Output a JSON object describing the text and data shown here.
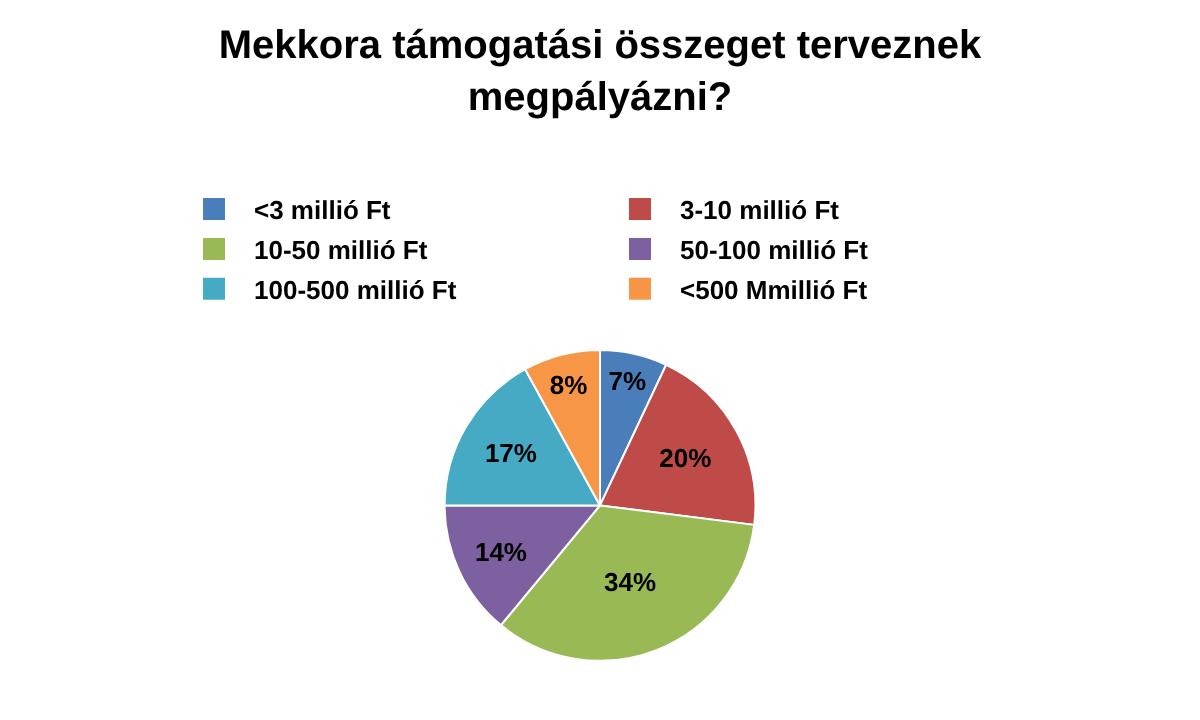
{
  "chart_data": {
    "type": "pie",
    "title": "Mekkora támogatási összeget terveznek megpályázni?",
    "categories": [
      "<3 millió Ft",
      "3-10 millió Ft",
      "10-50 millió Ft",
      "50-100 millió Ft",
      "100-500 millió Ft",
      "<500 Mmillió Ft"
    ],
    "values": [
      7,
      20,
      34,
      14,
      17,
      8
    ],
    "value_labels": [
      "7%",
      "20%",
      "34%",
      "14%",
      "17%",
      "8%"
    ],
    "colors": [
      "#4a7ebb",
      "#be4b48",
      "#98b954",
      "#7d60a0",
      "#46aac5",
      "#f79646"
    ],
    "legend": "top"
  }
}
